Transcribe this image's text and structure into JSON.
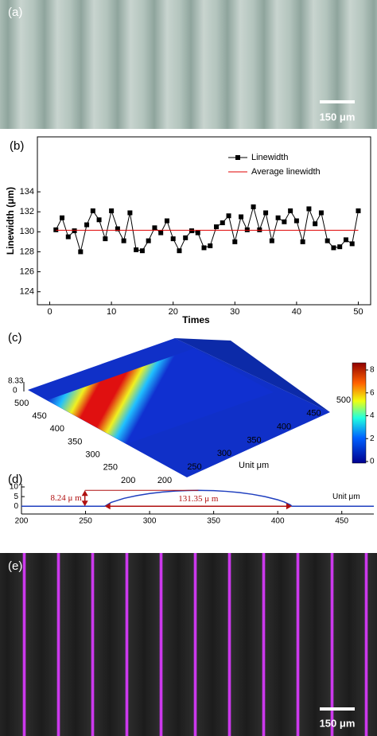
{
  "panel_a": {
    "label": "(a)",
    "scale_bar": "150 μm"
  },
  "chart_data": [
    {
      "type": "line",
      "label": "(b)",
      "x_label": "Times",
      "y_label": "Linewidth (μm)",
      "xlim": [
        -2,
        52
      ],
      "xticks": [
        0,
        10,
        20,
        30,
        40,
        50
      ],
      "ylim": [
        122.7,
        139.5
      ],
      "yticks": [
        124,
        126,
        128,
        130,
        132,
        134
      ],
      "legend": "top-right",
      "series": [
        {
          "name": "Linewidth",
          "color": "#000000",
          "marker": "square",
          "x": [
            1,
            2,
            3,
            4,
            5,
            6,
            7,
            8,
            9,
            10,
            11,
            12,
            13,
            14,
            15,
            16,
            17,
            18,
            19,
            20,
            21,
            22,
            23,
            24,
            25,
            26,
            27,
            28,
            29,
            30,
            31,
            32,
            33,
            34,
            35,
            36,
            37,
            38,
            39,
            40,
            41,
            42,
            43,
            44,
            45,
            46,
            47,
            48,
            49,
            50
          ],
          "values": [
            130.2,
            131.4,
            129.5,
            130.1,
            128.0,
            130.7,
            132.1,
            131.2,
            129.3,
            132.1,
            130.3,
            129.1,
            131.9,
            128.2,
            128.1,
            129.1,
            130.4,
            129.9,
            131.1,
            129.3,
            128.1,
            129.4,
            130.1,
            129.9,
            128.4,
            128.6,
            130.5,
            130.9,
            131.6,
            129.0,
            131.5,
            130.2,
            132.5,
            130.2,
            131.9,
            129.1,
            131.4,
            131.0,
            132.1,
            131.1,
            129.0,
            132.3,
            130.8,
            131.9,
            129.1,
            128.4,
            128.5,
            129.2,
            128.8,
            132.1
          ]
        },
        {
          "name": "Average linewidth",
          "color": "#e00000",
          "marker": "none",
          "x": [
            1,
            50
          ],
          "values": [
            130.15,
            130.15
          ]
        }
      ]
    },
    {
      "type": "line",
      "label": "(d)",
      "xlim": [
        200,
        475
      ],
      "xticks": [
        200,
        250,
        300,
        350,
        400,
        450
      ],
      "ylim": [
        -4,
        10
      ],
      "yticks": [
        0,
        5,
        10
      ],
      "series": [
        {
          "color": "#1f3fbf",
          "x": [
            200,
            220,
            240,
            260,
            265,
            270,
            280,
            290,
            300,
            310,
            320,
            330,
            338,
            350,
            360,
            370,
            380,
            390,
            400,
            405,
            410,
            411,
            420,
            440,
            460,
            475
          ],
          "values": [
            0,
            0,
            0,
            0,
            0,
            2.0,
            4.1,
            5.54,
            6.61,
            7.37,
            7.89,
            8.17,
            8.24,
            8.08,
            7.71,
            7.1,
            6.22,
            5.02,
            3.37,
            2.26,
            0.66,
            0,
            0,
            0,
            0,
            0
          ]
        }
      ],
      "annotations": {
        "height": "8.24 μ m",
        "width": "131.35 μ m",
        "unit": "Unit μm"
      }
    }
  ],
  "panel_c": {
    "label": "(c)",
    "z_labels": [
      "8.33",
      "0"
    ],
    "y_ticks": [
      500,
      450,
      400,
      350,
      300,
      250,
      200
    ],
    "x_ticks": [
      200,
      250,
      300,
      350,
      400,
      450,
      500
    ],
    "unit": "Unit μm",
    "colorbar_ticks": [
      0,
      2,
      4,
      6,
      8
    ]
  },
  "panel_e": {
    "label": "(e)",
    "scale_bar": "150 μm"
  }
}
